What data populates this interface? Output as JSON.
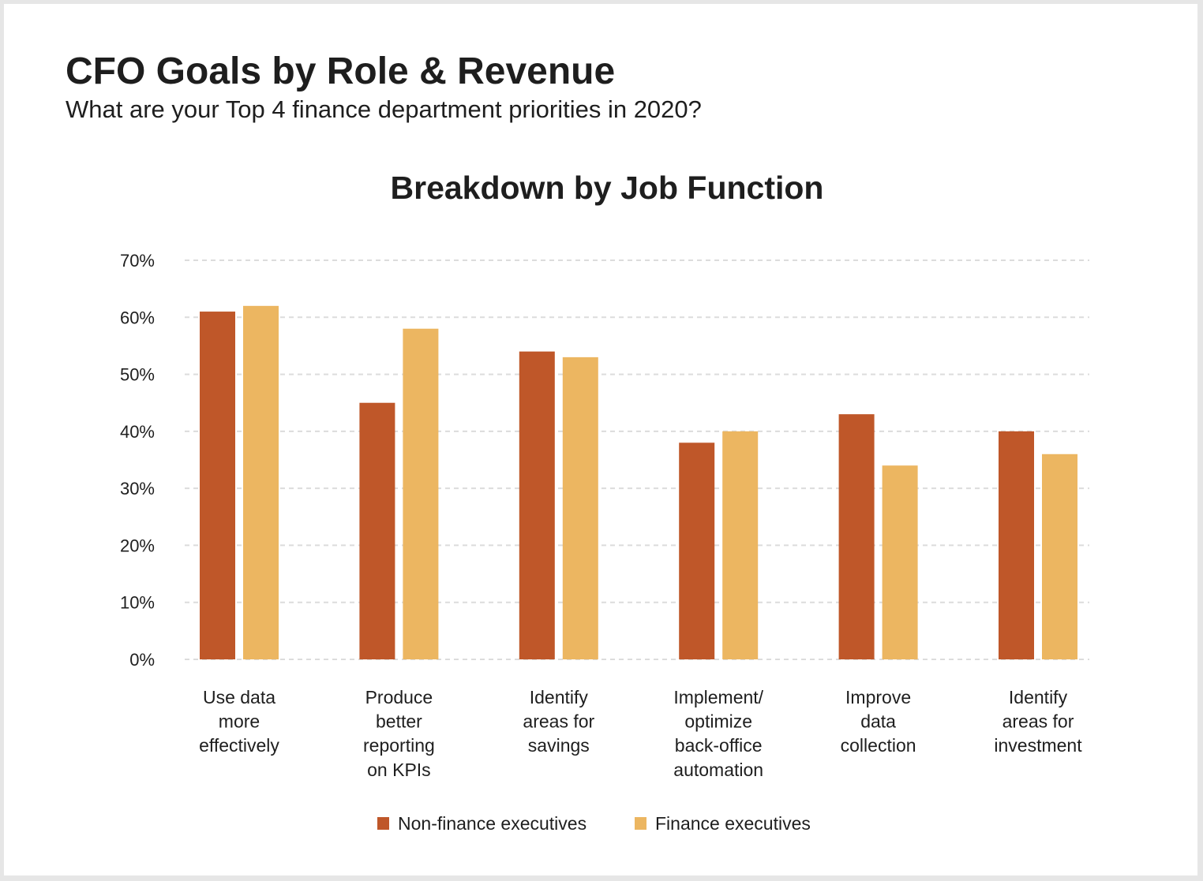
{
  "header": {
    "title": "CFO Goals by Role & Revenue",
    "subtitle": "What are your Top 4 finance department priorities in 2020?"
  },
  "colors": {
    "non_finance": "#bf5729",
    "finance": "#ecb661"
  },
  "chart_data": {
    "type": "bar",
    "title": "Breakdown by Job Function",
    "xlabel": "",
    "ylabel": "",
    "ylim": [
      0,
      70
    ],
    "yticks": [
      "0%",
      "10%",
      "20%",
      "30%",
      "40%",
      "50%",
      "60%",
      "70%"
    ],
    "grid": true,
    "legend_position": "bottom-center",
    "categories": [
      [
        "Use data",
        "more",
        "effectively"
      ],
      [
        "Produce",
        "better",
        "reporting",
        "on KPIs"
      ],
      [
        "Identify",
        "areas for",
        "savings"
      ],
      [
        "Implement/",
        "optimize",
        "back-office",
        "automation"
      ],
      [
        "Improve",
        "data",
        "collection"
      ],
      [
        "Identify",
        "areas for",
        "investment"
      ]
    ],
    "series": [
      {
        "name": "Non-finance executives",
        "values": [
          61,
          45,
          54,
          38,
          43,
          40
        ]
      },
      {
        "name": "Finance executives",
        "values": [
          62,
          58,
          53,
          40,
          34,
          36
        ]
      }
    ]
  }
}
